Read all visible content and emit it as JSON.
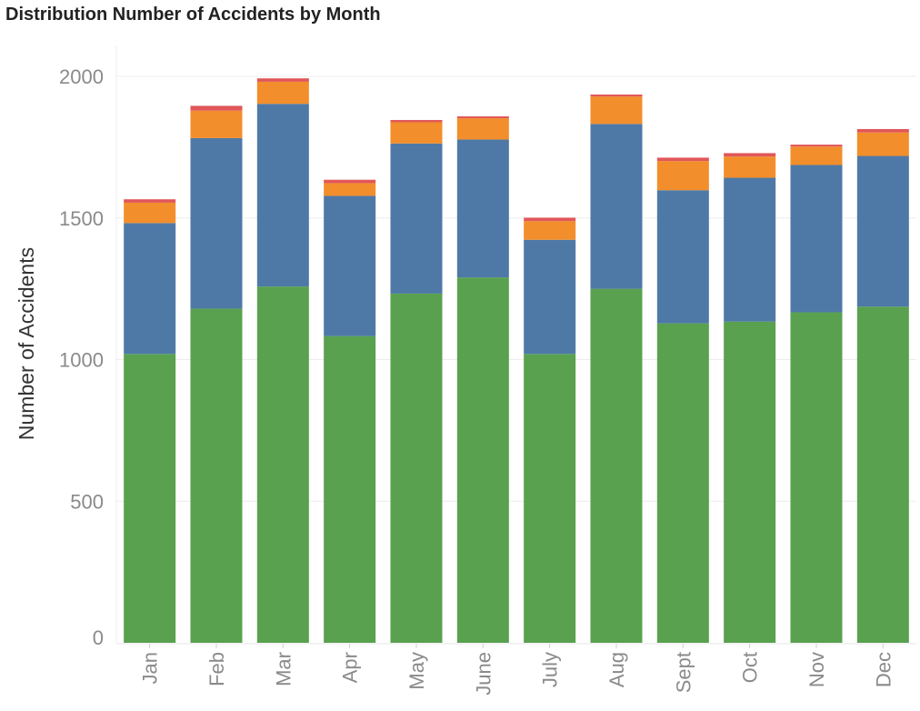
{
  "chart_data": {
    "type": "bar",
    "stacked": true,
    "title": "Distribution Number of Accidents by Month",
    "xlabel": "",
    "ylabel": "Number of Accidents",
    "categories": [
      "Jan",
      "Feb",
      "Mar",
      "Apr",
      "May",
      "June",
      "July",
      "Aug",
      "Sept",
      "Oct",
      "Nov",
      "Dec"
    ],
    "ylim": [
      0,
      2000
    ],
    "yticks": [
      0,
      500,
      1000,
      1500,
      2000
    ],
    "grid": true,
    "legend": "none",
    "series": [
      {
        "color": "#59a14f",
        "values": [
          1020,
          1180,
          1258,
          1083,
          1233,
          1290,
          1020,
          1250,
          1128,
          1134,
          1167,
          1187
        ]
      },
      {
        "color": "#4e79a7",
        "values": [
          462,
          602,
          645,
          495,
          530,
          487,
          403,
          582,
          470,
          508,
          520,
          532
        ]
      },
      {
        "color": "#f28e2b",
        "values": [
          72,
          97,
          78,
          45,
          75,
          75,
          66,
          97,
          103,
          75,
          65,
          83
        ]
      },
      {
        "color": "#e15759",
        "values": [
          12,
          17,
          12,
          12,
          8,
          7,
          12,
          7,
          12,
          12,
          7,
          12
        ]
      }
    ]
  }
}
